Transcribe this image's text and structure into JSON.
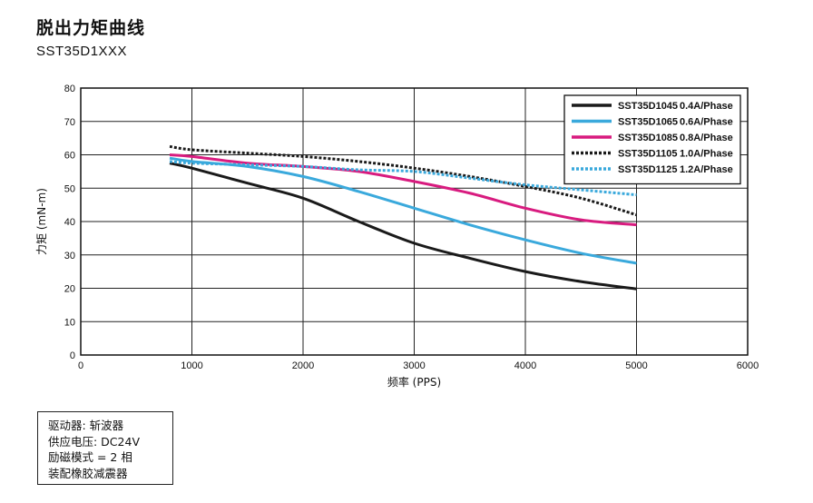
{
  "title": "脱出力矩曲线",
  "subtitle": "SST35D1XXX",
  "chart_data": {
    "type": "line",
    "xlabel": "频率 (PPS)",
    "ylabel": "力矩 (mN-m)",
    "xlim": [
      0,
      6000
    ],
    "ylim": [
      0,
      80
    ],
    "xticks": [
      0,
      1000,
      2000,
      3000,
      4000,
      5000,
      6000
    ],
    "yticks": [
      0,
      10,
      20,
      30,
      40,
      50,
      60,
      70,
      80
    ],
    "grid": true,
    "legend_position": "top-right",
    "series": [
      {
        "name": "SST35D1045 0.4A/Phase",
        "label_model": "SST35D1045",
        "label_current": "0.4A/Phase",
        "color": "#1a1a1a",
        "style": "solid",
        "x": [
          800,
          1000,
          1500,
          2000,
          2500,
          3000,
          3500,
          4000,
          4500,
          5000
        ],
        "y": [
          57.5,
          56,
          51.5,
          47,
          40,
          33.5,
          29,
          25,
          22,
          19.8
        ]
      },
      {
        "name": "SST35D1065 0.6A/Phase",
        "label_model": "SST35D1065",
        "label_current": "0.6A/Phase",
        "color": "#3aa9dc",
        "style": "solid",
        "x": [
          800,
          1000,
          1500,
          2000,
          2500,
          3000,
          3500,
          4000,
          4500,
          5000
        ],
        "y": [
          59,
          58,
          56.5,
          53.5,
          49,
          44,
          39,
          34.5,
          30.5,
          27.5
        ]
      },
      {
        "name": "SST35D1085 0.8A/Phase",
        "label_model": "SST35D1085",
        "label_current": "0.8A/Phase",
        "color": "#d81b7f",
        "style": "solid",
        "x": [
          800,
          1000,
          1500,
          2000,
          2500,
          3000,
          3500,
          4000,
          4500,
          5000
        ],
        "y": [
          60,
          59.5,
          57.5,
          56.5,
          55,
          52,
          48.5,
          44,
          40.5,
          39
        ]
      },
      {
        "name": "SST35D1105 1.0A/Phase",
        "label_model": "SST35D1105",
        "label_current": "1.0A/Phase",
        "color": "#1a1a1a",
        "style": "dotted",
        "x": [
          800,
          1000,
          1500,
          2000,
          2500,
          3000,
          3500,
          4000,
          4500,
          5000
        ],
        "y": [
          62.5,
          61.5,
          60.5,
          59.5,
          58,
          56,
          53.5,
          50.5,
          47,
          42
        ]
      },
      {
        "name": "SST35D1125 1.2A/Phase",
        "label_model": "SST35D1125",
        "label_current": "1.2A/Phase",
        "color": "#3aa9dc",
        "style": "dotted",
        "x": [
          800,
          1000,
          1500,
          2000,
          2500,
          3000,
          3500,
          4000,
          4500,
          5000
        ],
        "y": [
          58,
          57.5,
          57,
          56.5,
          55.5,
          55,
          53,
          51,
          49.5,
          48
        ]
      }
    ]
  },
  "notes": [
    "驱动器: 斩波器",
    "供应电压: DC24V",
    "励磁模式 = 2 相",
    "装配橡胶减震器"
  ]
}
